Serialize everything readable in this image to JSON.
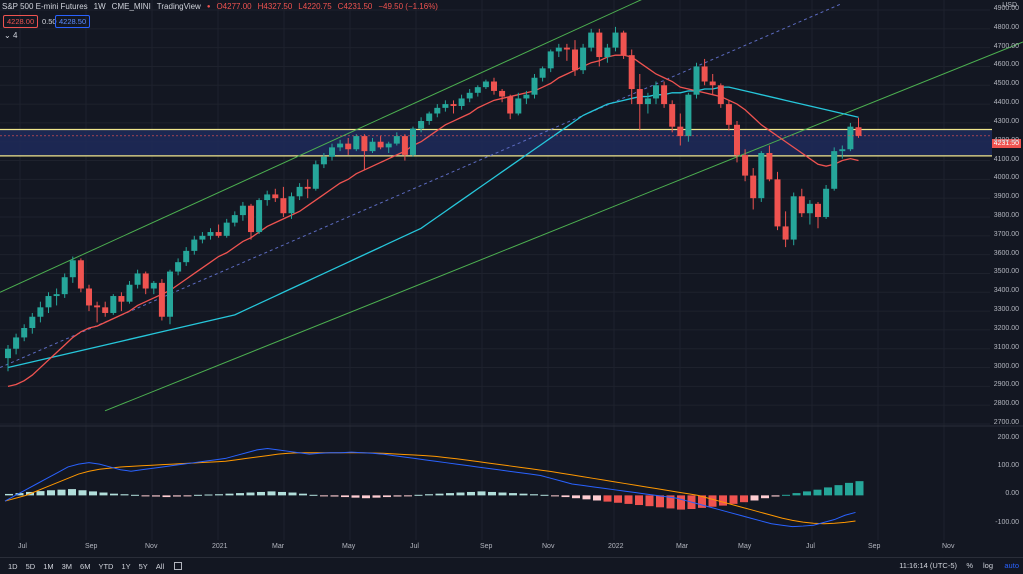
{
  "header": {
    "symbol": "S&P 500 E-mini Futures",
    "interval": "1W",
    "exchange": "CME_MINI",
    "source": "TradingView",
    "open": "O4277.00",
    "high": "H4327.50",
    "low": "L4220.75",
    "close": "C4231.50",
    "change": "−49.50 (−1.16%)",
    "bid": "4228.00",
    "spread": "0.50",
    "ask": "4228.50",
    "indicator_count": "4"
  },
  "price_axis": {
    "currency": "USD",
    "labels": [
      "4900.00",
      "4800.00",
      "4700.00",
      "4600.00",
      "4500.00",
      "4400.00",
      "4300.00",
      "4200.00",
      "4100.00",
      "4000.00",
      "3900.00",
      "3800.00",
      "3700.00",
      "3600.00",
      "3500.00",
      "3400.00",
      "3300.00",
      "3200.00",
      "3100.00",
      "3000.00",
      "2900.00",
      "2800.00",
      "2700.00"
    ],
    "last_price": "4231.50"
  },
  "macd_axis": {
    "labels": [
      "200.00",
      "100.00",
      "0.00",
      "-100.00"
    ]
  },
  "time_axis": {
    "labels": [
      "Jul",
      "Sep",
      "Nov",
      "2021",
      "Mar",
      "May",
      "Jul",
      "Sep",
      "Nov",
      "2022",
      "Mar",
      "May",
      "Jul",
      "Sep",
      "Nov"
    ]
  },
  "bottom_toolbar": {
    "timeframes": [
      "1D",
      "5D",
      "1M",
      "3M",
      "6M",
      "YTD",
      "1Y",
      "5Y",
      "All"
    ],
    "clock": "11:16:14 (UTC-5)",
    "percent": "%",
    "log": "log",
    "auto": "auto"
  },
  "colors": {
    "up": "#26a69a",
    "down": "#ef5350",
    "ma_fast": "#ef5350",
    "ma_slow": "#26c6da",
    "channel": "#4caf50",
    "zone": "#1e2a5a",
    "zone_line": "#f0e68c",
    "macd": "#2962ff",
    "signal": "#ff9800"
  },
  "chart_data": {
    "type": "candlestick",
    "ylim": [
      2700,
      4900
    ],
    "candles": [
      [
        3050,
        3120,
        2980,
        3100
      ],
      [
        3100,
        3180,
        3070,
        3160
      ],
      [
        3160,
        3230,
        3140,
        3210
      ],
      [
        3210,
        3290,
        3180,
        3270
      ],
      [
        3270,
        3350,
        3240,
        3320
      ],
      [
        3320,
        3400,
        3290,
        3380
      ],
      [
        3380,
        3420,
        3330,
        3390
      ],
      [
        3390,
        3500,
        3370,
        3480
      ],
      [
        3480,
        3590,
        3450,
        3570
      ],
      [
        3570,
        3580,
        3400,
        3420
      ],
      [
        3420,
        3440,
        3300,
        3330
      ],
      [
        3330,
        3350,
        3240,
        3320
      ],
      [
        3320,
        3350,
        3270,
        3290
      ],
      [
        3290,
        3390,
        3280,
        3380
      ],
      [
        3380,
        3400,
        3300,
        3350
      ],
      [
        3350,
        3460,
        3340,
        3440
      ],
      [
        3440,
        3520,
        3420,
        3500
      ],
      [
        3500,
        3510,
        3390,
        3420
      ],
      [
        3420,
        3460,
        3390,
        3450
      ],
      [
        3450,
        3470,
        3250,
        3270
      ],
      [
        3270,
        3520,
        3230,
        3510
      ],
      [
        3510,
        3580,
        3490,
        3560
      ],
      [
        3560,
        3640,
        3540,
        3620
      ],
      [
        3620,
        3700,
        3600,
        3680
      ],
      [
        3680,
        3720,
        3660,
        3700
      ],
      [
        3700,
        3740,
        3680,
        3720
      ],
      [
        3720,
        3760,
        3690,
        3700
      ],
      [
        3700,
        3790,
        3690,
        3770
      ],
      [
        3770,
        3830,
        3750,
        3810
      ],
      [
        3810,
        3880,
        3780,
        3860
      ],
      [
        3860,
        3870,
        3680,
        3720
      ],
      [
        3720,
        3900,
        3710,
        3890
      ],
      [
        3890,
        3940,
        3860,
        3920
      ],
      [
        3920,
        3950,
        3880,
        3900
      ],
      [
        3900,
        3960,
        3800,
        3820
      ],
      [
        3820,
        3930,
        3790,
        3910
      ],
      [
        3910,
        3980,
        3890,
        3960
      ],
      [
        3960,
        4000,
        3900,
        3950
      ],
      [
        3950,
        4100,
        3940,
        4080
      ],
      [
        4080,
        4140,
        4060,
        4120
      ],
      [
        4120,
        4190,
        4100,
        4170
      ],
      [
        4170,
        4210,
        4150,
        4190
      ],
      [
        4190,
        4220,
        4130,
        4160
      ],
      [
        4160,
        4240,
        4150,
        4230
      ],
      [
        4230,
        4240,
        4050,
        4150
      ],
      [
        4150,
        4220,
        4140,
        4200
      ],
      [
        4200,
        4230,
        4160,
        4170
      ],
      [
        4170,
        4200,
        4140,
        4190
      ],
      [
        4190,
        4250,
        4180,
        4230
      ],
      [
        4230,
        4240,
        4100,
        4130
      ],
      [
        4130,
        4280,
        4120,
        4270
      ],
      [
        4270,
        4330,
        4250,
        4310
      ],
      [
        4310,
        4360,
        4290,
        4350
      ],
      [
        4350,
        4400,
        4330,
        4380
      ],
      [
        4380,
        4420,
        4360,
        4400
      ],
      [
        4400,
        4420,
        4350,
        4390
      ],
      [
        4390,
        4450,
        4370,
        4430
      ],
      [
        4430,
        4480,
        4410,
        4460
      ],
      [
        4460,
        4500,
        4440,
        4490
      ],
      [
        4490,
        4530,
        4480,
        4520
      ],
      [
        4520,
        4540,
        4450,
        4470
      ],
      [
        4470,
        4480,
        4410,
        4440
      ],
      [
        4440,
        4450,
        4320,
        4350
      ],
      [
        4350,
        4460,
        4340,
        4430
      ],
      [
        4430,
        4470,
        4400,
        4450
      ],
      [
        4450,
        4560,
        4430,
        4540
      ],
      [
        4540,
        4600,
        4520,
        4590
      ],
      [
        4590,
        4690,
        4570,
        4680
      ],
      [
        4680,
        4720,
        4650,
        4700
      ],
      [
        4700,
        4720,
        4630,
        4690
      ],
      [
        4690,
        4740,
        4550,
        4580
      ],
      [
        4580,
        4720,
        4560,
        4700
      ],
      [
        4700,
        4800,
        4680,
        4780
      ],
      [
        4780,
        4800,
        4600,
        4650
      ],
      [
        4650,
        4720,
        4620,
        4700
      ],
      [
        4700,
        4810,
        4680,
        4780
      ],
      [
        4780,
        4790,
        4640,
        4660
      ],
      [
        4660,
        4690,
        4400,
        4480
      ],
      [
        4480,
        4560,
        4260,
        4400
      ],
      [
        4400,
        4460,
        4350,
        4430
      ],
      [
        4430,
        4520,
        4400,
        4500
      ],
      [
        4500,
        4520,
        4380,
        4400
      ],
      [
        4400,
        4420,
        4250,
        4280
      ],
      [
        4280,
        4350,
        4180,
        4230
      ],
      [
        4230,
        4460,
        4200,
        4450
      ],
      [
        4450,
        4620,
        4430,
        4600
      ],
      [
        4600,
        4640,
        4500,
        4520
      ],
      [
        4520,
        4560,
        4450,
        4500
      ],
      [
        4500,
        4510,
        4380,
        4400
      ],
      [
        4400,
        4420,
        4260,
        4290
      ],
      [
        4290,
        4310,
        4090,
        4130
      ],
      [
        4130,
        4160,
        3990,
        4020
      ],
      [
        4020,
        4060,
        3840,
        3900
      ],
      [
        3900,
        4150,
        3880,
        4140
      ],
      [
        4140,
        4180,
        3990,
        4000
      ],
      [
        4000,
        4040,
        3730,
        3750
      ],
      [
        3750,
        3830,
        3640,
        3680
      ],
      [
        3680,
        3930,
        3650,
        3910
      ],
      [
        3910,
        3950,
        3800,
        3820
      ],
      [
        3820,
        3890,
        3760,
        3870
      ],
      [
        3870,
        3880,
        3740,
        3800
      ],
      [
        3800,
        3970,
        3790,
        3950
      ],
      [
        3950,
        4170,
        3940,
        4150
      ],
      [
        4150,
        4180,
        4110,
        4160
      ],
      [
        4160,
        4300,
        4150,
        4280
      ],
      [
        4277,
        4327.5,
        4220.75,
        4231.5
      ]
    ],
    "ma_fast": [
      2900,
      2910,
      2930,
      2960,
      3000,
      3040,
      3080,
      3120,
      3160,
      3190,
      3210,
      3220,
      3240,
      3260,
      3280,
      3300,
      3330,
      3350,
      3370,
      3390,
      3410,
      3440,
      3470,
      3500,
      3530,
      3560,
      3590,
      3610,
      3640,
      3670,
      3690,
      3720,
      3750,
      3770,
      3790,
      3810,
      3830,
      3860,
      3890,
      3920,
      3950,
      3980,
      4000,
      4030,
      4050,
      4070,
      4090,
      4110,
      4130,
      4150,
      4180,
      4200,
      4230,
      4260,
      4290,
      4310,
      4330,
      4350,
      4380,
      4400,
      4420,
      4430,
      4440,
      4450,
      4460,
      4470,
      4490,
      4510,
      4540,
      4560,
      4580,
      4600,
      4620,
      4630,
      4650,
      4660,
      4660,
      4650,
      4620,
      4590,
      4560,
      4540,
      4520,
      4490,
      4480,
      4470,
      4460,
      4450,
      4440,
      4420,
      4400,
      4370,
      4330,
      4290,
      4260,
      4230,
      4200,
      4170,
      4140,
      4110,
      4080,
      4070,
      4080,
      4100,
      4110,
      4100
    ],
    "ma_slow": [
      3000,
      3010,
      3020,
      3030,
      3040,
      3050,
      3060,
      3070,
      3080,
      3090,
      3100,
      3110,
      3120,
      3130,
      3140,
      3150,
      3160,
      3170,
      3180,
      3190,
      3200,
      3210,
      3220,
      3230,
      3240,
      3250,
      3260,
      3270,
      3280,
      3300,
      3320,
      3340,
      3360,
      3380,
      3400,
      3420,
      3440,
      3460,
      3480,
      3500,
      3520,
      3540,
      3560,
      3580,
      3600,
      3620,
      3640,
      3660,
      3680,
      3700,
      3720,
      3740,
      3770,
      3800,
      3830,
      3860,
      3890,
      3920,
      3950,
      3980,
      4010,
      4040,
      4070,
      4100,
      4130,
      4160,
      4190,
      4220,
      4250,
      4280,
      4310,
      4340,
      4360,
      4380,
      4400,
      4410,
      4420,
      4430,
      4440,
      4440,
      4450,
      4450,
      4460,
      4460,
      4470,
      4470,
      4480,
      4480,
      4490,
      4490,
      4480,
      4470,
      4460,
      4450,
      4440,
      4430,
      4420,
      4410,
      4400,
      4390,
      4380,
      4370,
      4360,
      4350,
      4340,
      4330
    ],
    "channel_upper": [
      [
        0,
        3400
      ],
      [
        660,
        5000
      ]
    ],
    "channel_mid": [
      [
        0,
        3000
      ],
      [
        840,
        4930
      ]
    ],
    "channel_lower": [
      [
        105,
        2770
      ],
      [
        1023,
        4730
      ]
    ],
    "zone": [
      4125,
      4265
    ],
    "macd": [
      -20,
      0,
      20,
      40,
      60,
      80,
      100,
      110,
      115,
      110,
      100,
      90,
      85,
      90,
      95,
      100,
      105,
      110,
      115,
      120,
      125,
      130,
      140,
      150,
      160,
      165,
      160,
      155,
      150,
      145,
      148,
      150,
      150,
      152,
      150,
      148,
      145,
      140,
      135,
      130,
      125,
      120,
      115,
      110,
      105,
      100,
      95,
      90,
      85,
      80,
      75,
      70,
      60,
      50,
      40,
      35,
      30,
      25,
      20,
      15,
      10,
      5,
      0,
      -5,
      -10,
      -20,
      -30,
      -40,
      -50,
      -60,
      -70,
      -80,
      -90,
      -100,
      -105,
      -110,
      -108,
      -105,
      -95,
      -85,
      -70,
      -60
    ],
    "signal": [
      -20,
      -10,
      0,
      15,
      30,
      45,
      60,
      75,
      85,
      92,
      96,
      100,
      102,
      104,
      106,
      108,
      110,
      112,
      114,
      116,
      118,
      120,
      125,
      130,
      135,
      140,
      145,
      148,
      150,
      150,
      150,
      150,
      150,
      150,
      150,
      149,
      148,
      146,
      144,
      142,
      140,
      137,
      133,
      129,
      124,
      119,
      114,
      109,
      104,
      99,
      94,
      89,
      84,
      78,
      72,
      66,
      60,
      54,
      48,
      42,
      36,
      30,
      24,
      18,
      12,
      6,
      0,
      -10,
      -20,
      -30,
      -40,
      -50,
      -60,
      -70,
      -80,
      -88,
      -94,
      -98,
      -100,
      -98,
      -95,
      -90
    ],
    "histogram": [
      5,
      8,
      12,
      15,
      18,
      20,
      22,
      18,
      14,
      10,
      6,
      4,
      2,
      -2,
      -4,
      -6,
      -4,
      -2,
      2,
      3,
      4,
      6,
      8,
      10,
      12,
      14,
      12,
      10,
      6,
      2,
      -2,
      -4,
      -6,
      -8,
      -10,
      -8,
      -6,
      -4,
      -2,
      2,
      4,
      6,
      8,
      10,
      12,
      14,
      12,
      10,
      8,
      6,
      4,
      2,
      -3,
      -6,
      -10,
      -14,
      -18,
      -22,
      -26,
      -30,
      -34,
      -38,
      -42,
      -46,
      -50,
      -48,
      -44,
      -40,
      -36,
      -30,
      -24,
      -18,
      -10,
      -4,
      2,
      8,
      14,
      20,
      28,
      36,
      44,
      50
    ]
  }
}
